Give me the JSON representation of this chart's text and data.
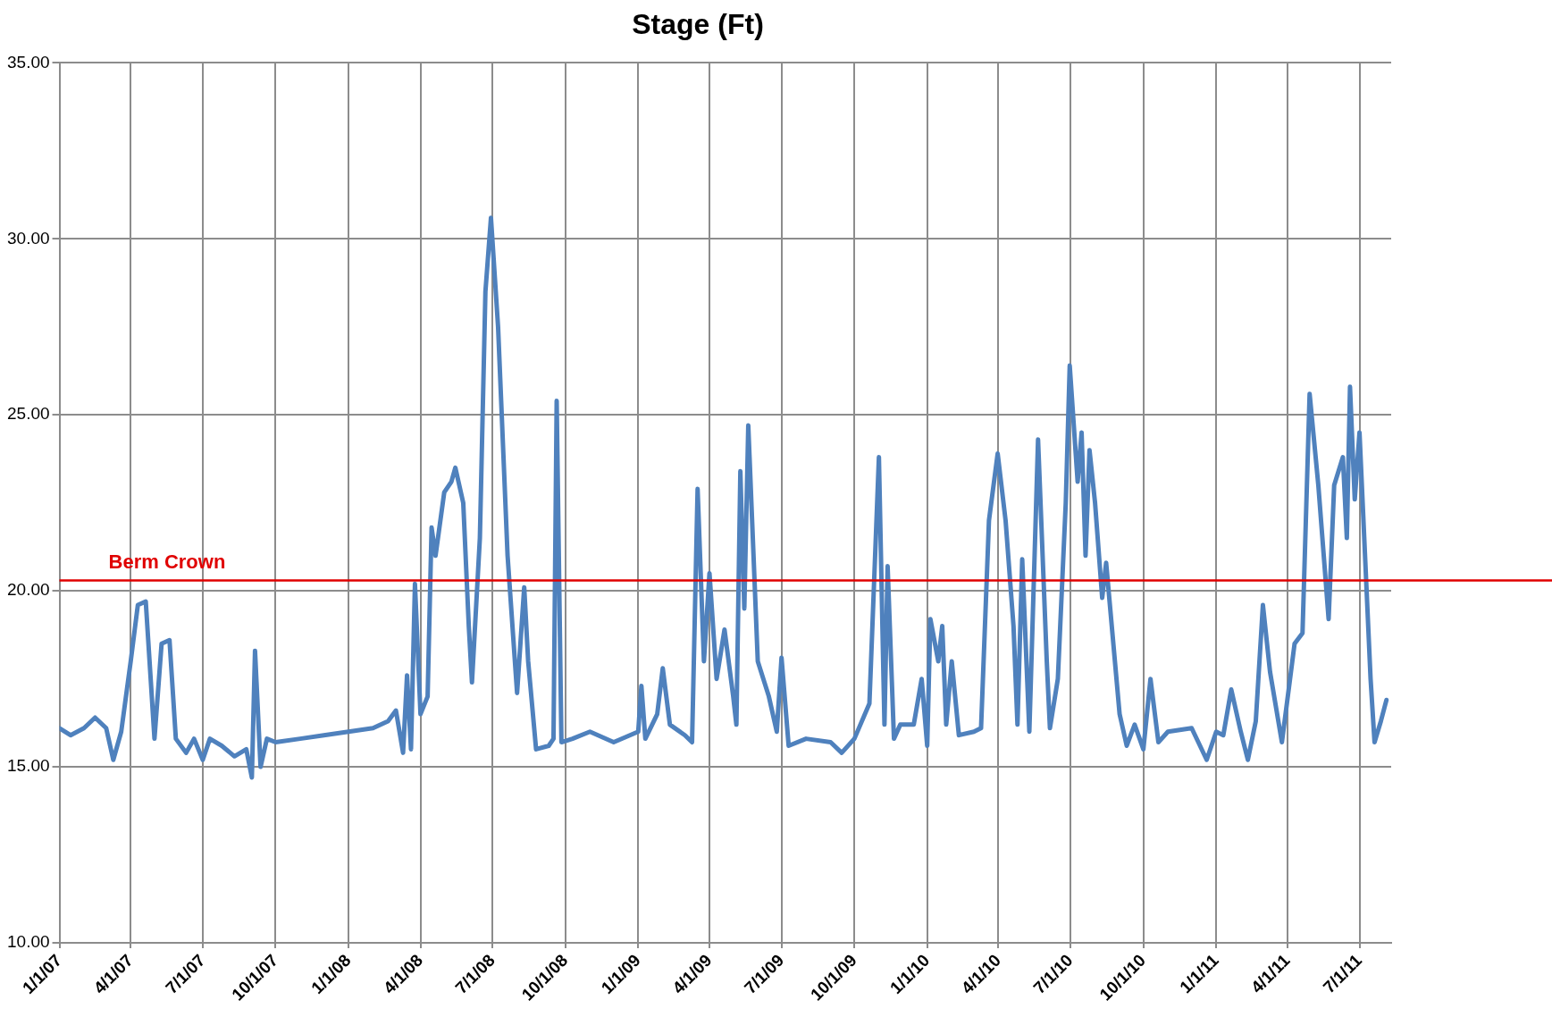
{
  "chart_data": {
    "type": "line",
    "title": "Stage (Ft)",
    "legend": false,
    "grid": true,
    "marker": "none",
    "line_style": "solid",
    "x": [
      "2007-01-01",
      "2007-01-15",
      "2007-02-01",
      "2007-02-15",
      "2007-03-01",
      "2007-03-10",
      "2007-03-20",
      "2007-04-01",
      "2007-04-10",
      "2007-04-20",
      "2007-05-01",
      "2007-05-10",
      "2007-05-20",
      "2007-05-28",
      "2007-06-10",
      "2007-06-20",
      "2007-07-01",
      "2007-07-10",
      "2007-07-25",
      "2007-08-10",
      "2007-08-25",
      "2007-09-01",
      "2007-09-05",
      "2007-09-12",
      "2007-09-20",
      "2007-10-01",
      "2007-11-01",
      "2007-12-01",
      "2008-01-01",
      "2008-02-01",
      "2008-02-20",
      "2008-03-01",
      "2008-03-10",
      "2008-03-15",
      "2008-03-20",
      "2008-03-25",
      "2008-04-01",
      "2008-04-10",
      "2008-04-15",
      "2008-04-20",
      "2008-05-01",
      "2008-05-10",
      "2008-05-15",
      "2008-05-25",
      "2008-06-01",
      "2008-06-05",
      "2008-06-15",
      "2008-06-22",
      "2008-06-29",
      "2008-07-08",
      "2008-07-20",
      "2008-08-01",
      "2008-08-10",
      "2008-08-15",
      "2008-08-25",
      "2008-09-10",
      "2008-09-16",
      "2008-09-20",
      "2008-09-26",
      "2008-10-10",
      "2008-11-01",
      "2008-12-01",
      "2009-01-01",
      "2009-01-05",
      "2009-01-10",
      "2009-01-25",
      "2009-02-01",
      "2009-02-10",
      "2009-03-01",
      "2009-03-10",
      "2009-03-17",
      "2009-03-25",
      "2009-04-01",
      "2009-04-10",
      "2009-04-20",
      "2009-05-01",
      "2009-05-05",
      "2009-05-10",
      "2009-05-15",
      "2009-05-20",
      "2009-06-01",
      "2009-06-15",
      "2009-06-25",
      "2009-07-01",
      "2009-07-10",
      "2009-08-01",
      "2009-09-01",
      "2009-09-15",
      "2009-10-01",
      "2009-10-20",
      "2009-11-01",
      "2009-11-08",
      "2009-11-12",
      "2009-11-20",
      "2009-11-28",
      "2009-12-15",
      "2009-12-25",
      "2010-01-01",
      "2010-01-05",
      "2010-01-15",
      "2010-01-20",
      "2010-01-25",
      "2010-02-01",
      "2010-02-10",
      "2010-03-01",
      "2010-03-10",
      "2010-03-20",
      "2010-03-31",
      "2010-04-10",
      "2010-04-20",
      "2010-04-25",
      "2010-05-01",
      "2010-05-10",
      "2010-05-21",
      "2010-06-01",
      "2010-06-05",
      "2010-06-15",
      "2010-06-25",
      "2010-06-30",
      "2010-07-10",
      "2010-07-15",
      "2010-07-20",
      "2010-07-25",
      "2010-08-01",
      "2010-08-10",
      "2010-08-15",
      "2010-09-01",
      "2010-09-10",
      "2010-09-20",
      "2010-10-01",
      "2010-10-10",
      "2010-10-20",
      "2010-11-01",
      "2010-12-01",
      "2010-12-20",
      "2011-01-01",
      "2011-01-10",
      "2011-01-20",
      "2011-02-01",
      "2011-02-10",
      "2011-02-20",
      "2011-03-01",
      "2011-03-10",
      "2011-03-25",
      "2011-04-10",
      "2011-04-20",
      "2011-04-29",
      "2011-05-10",
      "2011-05-23",
      "2011-05-30",
      "2011-06-10",
      "2011-06-15",
      "2011-06-19",
      "2011-06-25",
      "2011-07-01",
      "2011-07-15",
      "2011-07-20",
      "2011-07-28",
      "2011-08-04"
    ],
    "series": [
      {
        "color": "#4f81bd",
        "values": [
          16.1,
          15.9,
          16.1,
          16.4,
          16.1,
          15.2,
          16.0,
          18.0,
          19.6,
          19.7,
          15.8,
          18.5,
          18.6,
          15.8,
          15.4,
          15.8,
          15.2,
          15.8,
          15.6,
          15.3,
          15.5,
          14.7,
          18.3,
          15.0,
          15.8,
          15.7,
          15.8,
          15.9,
          16.0,
          16.1,
          16.3,
          16.6,
          15.4,
          17.6,
          15.5,
          20.2,
          16.5,
          17.0,
          21.8,
          21.0,
          22.8,
          23.1,
          23.5,
          22.5,
          19.0,
          17.4,
          21.5,
          28.5,
          30.6,
          27.5,
          21.0,
          17.1,
          20.1,
          18.0,
          15.5,
          15.6,
          15.8,
          25.4,
          15.7,
          15.8,
          16.0,
          15.7,
          16.0,
          17.3,
          15.8,
          16.5,
          17.8,
          16.2,
          15.9,
          15.7,
          22.9,
          18.0,
          20.5,
          17.5,
          18.9,
          17.0,
          16.2,
          23.4,
          19.5,
          24.7,
          18.0,
          17.0,
          16.0,
          18.1,
          15.6,
          15.8,
          15.7,
          15.4,
          15.8,
          16.8,
          23.8,
          16.2,
          20.7,
          15.8,
          16.2,
          16.2,
          17.5,
          15.6,
          19.2,
          18.0,
          19.0,
          16.2,
          18.0,
          15.9,
          16.0,
          16.1,
          22.0,
          23.9,
          22.0,
          19.0,
          16.2,
          20.9,
          16.0,
          24.3,
          18.0,
          16.1,
          17.5,
          22.5,
          26.4,
          23.1,
          24.5,
          21.0,
          24.0,
          22.5,
          19.8,
          20.8,
          16.5,
          15.6,
          16.2,
          15.5,
          17.5,
          15.7,
          16.0,
          16.1,
          15.2,
          16.0,
          15.9,
          17.2,
          16.0,
          15.2,
          16.3,
          19.6,
          17.7,
          15.7,
          18.5,
          18.8,
          25.6,
          23.0,
          19.2,
          23.0,
          23.8,
          21.5,
          25.8,
          22.6,
          24.5,
          17.5,
          15.7,
          16.3,
          16.9
        ]
      }
    ],
    "xlim": [
      "2007-01-01",
      "2011-08-10"
    ],
    "xticks": [
      {
        "value": "2007-01-01",
        "label": "1/1/07"
      },
      {
        "value": "2007-04-01",
        "label": "4/1/07"
      },
      {
        "value": "2007-07-01",
        "label": "7/1/07"
      },
      {
        "value": "2007-10-01",
        "label": "10/1/07"
      },
      {
        "value": "2008-01-01",
        "label": "1/1/08"
      },
      {
        "value": "2008-04-01",
        "label": "4/1/08"
      },
      {
        "value": "2008-07-01",
        "label": "7/1/08"
      },
      {
        "value": "2008-10-01",
        "label": "10/1/08"
      },
      {
        "value": "2009-01-01",
        "label": "1/1/09"
      },
      {
        "value": "2009-04-01",
        "label": "4/1/09"
      },
      {
        "value": "2009-07-01",
        "label": "7/1/09"
      },
      {
        "value": "2009-10-01",
        "label": "10/1/09"
      },
      {
        "value": "2010-01-01",
        "label": "1/1/10"
      },
      {
        "value": "2010-04-01",
        "label": "4/1/10"
      },
      {
        "value": "2010-07-01",
        "label": "7/1/10"
      },
      {
        "value": "2010-10-01",
        "label": "10/1/10"
      },
      {
        "value": "2011-01-01",
        "label": "1/1/11"
      },
      {
        "value": "2011-04-01",
        "label": "4/1/11"
      },
      {
        "value": "2011-07-01",
        "label": "7/1/11"
      }
    ],
    "ylim": [
      10,
      35
    ],
    "yticks": [
      {
        "value": 10,
        "label": "10.00"
      },
      {
        "value": 15,
        "label": "15.00"
      },
      {
        "value": 20,
        "label": "20.00"
      },
      {
        "value": 25,
        "label": "25.00"
      },
      {
        "value": 30,
        "label": "30.00"
      },
      {
        "value": 35,
        "label": "35.00"
      }
    ],
    "ref_lines": [
      {
        "axis": "y",
        "value": 20.3,
        "label": "Berm Crown",
        "color": "#e00000"
      }
    ]
  }
}
